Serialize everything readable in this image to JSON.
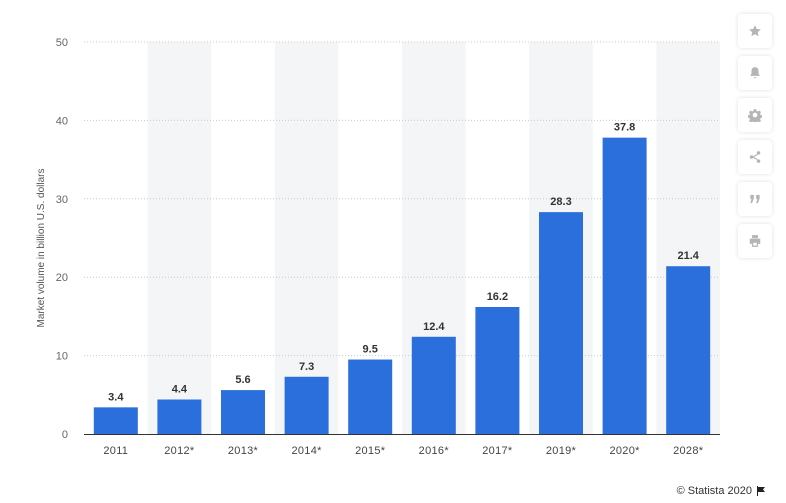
{
  "chart_data": {
    "type": "bar",
    "categories": [
      "2011",
      "2012*",
      "2013*",
      "2014*",
      "2015*",
      "2016*",
      "2017*",
      "2019*",
      "2020*",
      "2028*"
    ],
    "values": [
      3.4,
      4.4,
      5.6,
      7.3,
      9.5,
      12.4,
      16.2,
      28.3,
      37.8,
      21.4
    ],
    "value_labels": [
      "3.4",
      "4.4",
      "5.6",
      "7.3",
      "9.5",
      "12.4",
      "16.2",
      "28.3",
      "37.8",
      "21.4"
    ],
    "ylabel": "Market volume in billion U.S. dollars",
    "ylim": [
      0,
      50
    ],
    "yticks": [
      0,
      10,
      20,
      30,
      40,
      50
    ],
    "grid": true,
    "bar_color": "#2a6fdb",
    "alt_band_color": "#f4f5f7"
  },
  "credit": {
    "text": "© Statista 2020"
  },
  "tools": [
    {
      "icon": "star-icon"
    },
    {
      "icon": "bell-icon"
    },
    {
      "icon": "gear-icon"
    },
    {
      "icon": "share-icon"
    },
    {
      "icon": "quote-icon"
    },
    {
      "icon": "print-icon"
    }
  ]
}
